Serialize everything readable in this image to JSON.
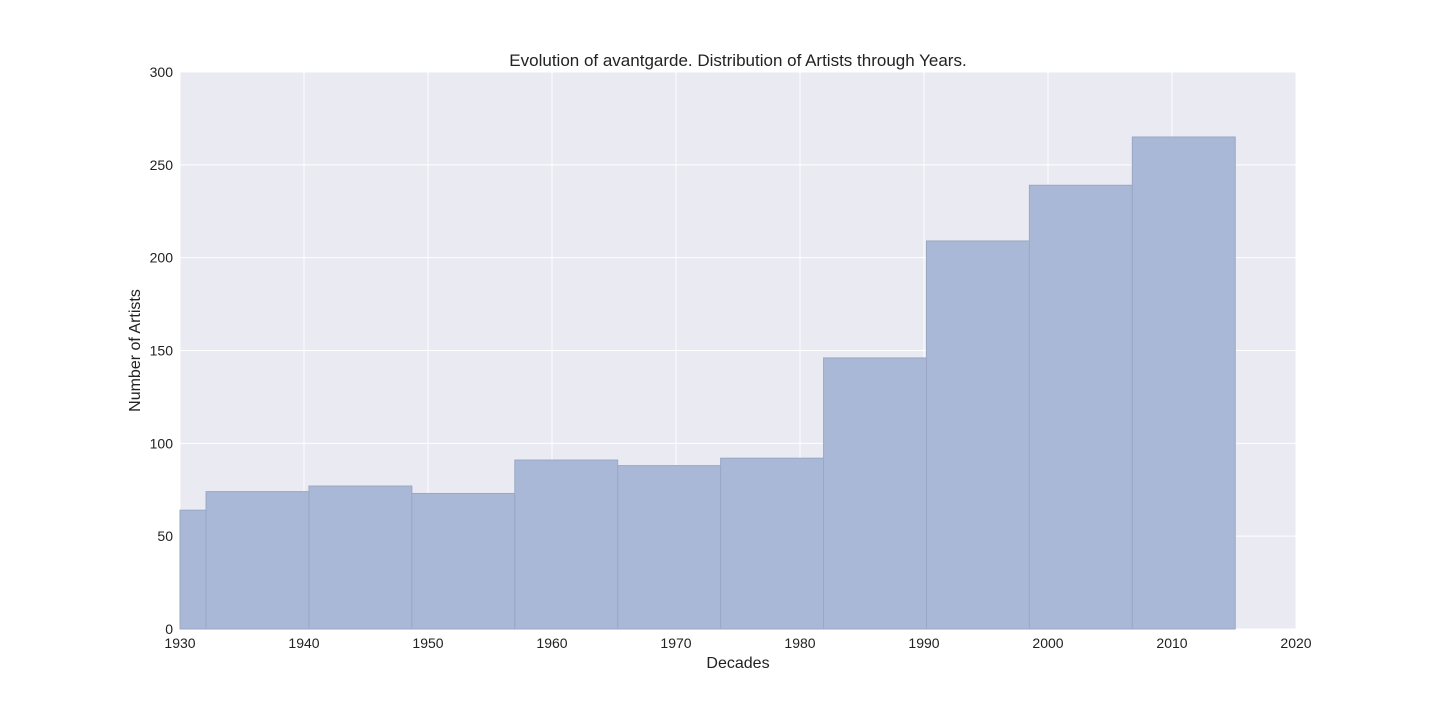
{
  "chart_data": {
    "type": "bar",
    "title": "Evolution of avantgarde. Distribution of Artists through Years.",
    "xlabel": "Decades",
    "ylabel": "Number of Artists",
    "xlim": [
      1930,
      2020
    ],
    "ylim": [
      0,
      300
    ],
    "xticks": [
      1930,
      1940,
      1950,
      1960,
      1970,
      1980,
      1990,
      2000,
      2010,
      2020
    ],
    "yticks": [
      0,
      50,
      100,
      150,
      200,
      250,
      300
    ],
    "grid": true,
    "bins": [
      {
        "x0": 1930.0,
        "x1": 1932.1,
        "value": 64
      },
      {
        "x0": 1932.1,
        "x1": 1940.4,
        "value": 74
      },
      {
        "x0": 1940.4,
        "x1": 1948.7,
        "value": 77
      },
      {
        "x0": 1948.7,
        "x1": 1957.0,
        "value": 73
      },
      {
        "x0": 1957.0,
        "x1": 1965.3,
        "value": 91
      },
      {
        "x0": 1965.3,
        "x1": 1973.6,
        "value": 88
      },
      {
        "x0": 1973.6,
        "x1": 1981.9,
        "value": 92
      },
      {
        "x0": 1981.9,
        "x1": 1990.2,
        "value": 146
      },
      {
        "x0": 1990.2,
        "x1": 1998.5,
        "value": 209
      },
      {
        "x0": 1998.5,
        "x1": 2006.8,
        "value": 239
      },
      {
        "x0": 2006.8,
        "x1": 2015.1,
        "value": 265
      }
    ],
    "colors": {
      "plot_background": "#eaeaf2",
      "grid": "#ffffff",
      "bar_fill": "#a9b8d6",
      "bar_stroke": "#9aa8c4"
    }
  }
}
